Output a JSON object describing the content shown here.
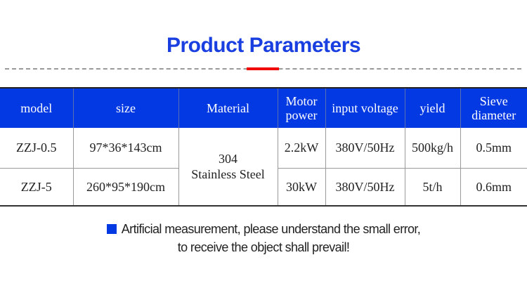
{
  "title": "Product Parameters",
  "colors": {
    "accent": "#0339e3",
    "title": "#1a3fe0",
    "divider_highlight": "#f00000"
  },
  "table": {
    "headers": [
      "model",
      "size",
      "Material",
      "Motor power",
      "input voltage",
      "yield",
      "Sieve diameter"
    ],
    "rows": [
      {
        "model": "ZZJ-0.5",
        "size": "97*36*143cm",
        "power": "2.2kW",
        "voltage": "380V/50Hz",
        "yield": "500kg/h",
        "sieve": "0.5mm"
      },
      {
        "model": "ZZJ-5",
        "size": "260*95*190cm",
        "power": "30kW",
        "voltage": "380V/50Hz",
        "yield": "5t/h",
        "sieve": "0.6mm"
      }
    ],
    "material_line1": "304",
    "material_line2": "Stainless Steel"
  },
  "note": {
    "line1": "Artificial measurement, please understand the small error,",
    "line2": "to receive the object shall prevail!",
    "bullet_icon": "square-bullet"
  }
}
